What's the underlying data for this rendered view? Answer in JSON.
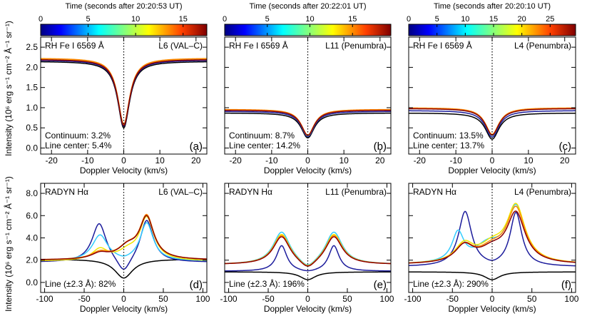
{
  "figure": {
    "y_axis_label": "Intensity (10⁶ erg s⁻¹ cm⁻² Å⁻¹ sr⁻¹)"
  },
  "colorbars": [
    {
      "label": "Time (seconds after 20:20:53 UT)",
      "max": 17.5,
      "ticks": [
        0,
        5,
        10,
        15
      ]
    },
    {
      "label": "Time (seconds after 20:22:01 UT)",
      "max": 19.5,
      "ticks": [
        0,
        5,
        10,
        15
      ]
    },
    {
      "label": "Time (seconds after 20:20:10 UT)",
      "max": 29.5,
      "ticks": [
        0,
        5,
        10,
        15,
        20,
        25
      ]
    }
  ],
  "colors": {
    "black": "#000000",
    "blue": "#1c1c9c",
    "cyan": "#33ccff",
    "yellow": "#f2e600",
    "orange": "#ff8800",
    "darkred": "#8b0000",
    "text_cyan": "#1ab2f2",
    "text_red": "#ee1111"
  },
  "chart_data": [
    {
      "type": "line",
      "panel": "(a)",
      "title_left": "RH Fe I 6569 Å",
      "title_right": "L6 (VAL–C)",
      "xlabel": "Doppler Velocity (km/s)",
      "xlim": [
        -23,
        23
      ],
      "ylim": [
        -0.15,
        2.75
      ],
      "xticks": [
        -20,
        -10,
        0,
        10,
        20
      ],
      "yticks": [
        0.0,
        0.5,
        1.0,
        1.5,
        2.0,
        2.5
      ],
      "ytick_labels": [
        "0.0",
        "0.5",
        "1.0",
        "1.5",
        "2.0",
        "2.5"
      ],
      "series": [
        {
          "color": "black",
          "continuum": 2.15,
          "core": 0.5,
          "width": 2.0
        },
        {
          "color": "blue",
          "continuum": 2.18,
          "core": 0.54,
          "width": 2.0
        },
        {
          "color": "cyan",
          "continuum": 2.21,
          "core": 0.57,
          "width": 2.0
        },
        {
          "color": "yellow",
          "continuum": 2.22,
          "core": 0.58,
          "width": 2.0
        },
        {
          "color": "orange",
          "continuum": 2.23,
          "core": 0.59,
          "width": 2.0
        },
        {
          "color": "darkred",
          "continuum": 2.2,
          "core": 0.56,
          "width": 2.0
        }
      ],
      "notes": [
        {
          "text": "Continuum: 3.2%",
          "color": "cyan"
        },
        {
          "text": "Line center: 5.4%",
          "color": "red"
        }
      ]
    },
    {
      "type": "line",
      "panel": "(b)",
      "title_left": "RH Fe I 6569 Å",
      "title_right": "L11 (Penumbra)",
      "xlabel": "Doppler Velocity (km/s)",
      "xlim": [
        -23,
        23
      ],
      "ylim": [
        -0.15,
        2.75
      ],
      "xticks": [
        -20,
        -10,
        0,
        10,
        20
      ],
      "yticks": [],
      "series": [
        {
          "color": "black",
          "continuum": 0.87,
          "core": 0.25,
          "width": 2.2
        },
        {
          "color": "blue",
          "continuum": 0.91,
          "core": 0.28,
          "width": 2.2
        },
        {
          "color": "cyan",
          "continuum": 0.94,
          "core": 0.3,
          "width": 2.2
        },
        {
          "color": "yellow",
          "continuum": 0.95,
          "core": 0.31,
          "width": 2.2
        },
        {
          "color": "orange",
          "continuum": 0.96,
          "core": 0.32,
          "width": 2.2
        },
        {
          "color": "darkred",
          "continuum": 0.94,
          "core": 0.31,
          "width": 2.2
        }
      ],
      "notes": [
        {
          "text": "Continuum: 8.7%",
          "color": "cyan"
        },
        {
          "text": "Line center: 14.2%",
          "color": "red"
        }
      ]
    },
    {
      "type": "line",
      "panel": "(c)",
      "title_left": "RH Fe I 6569 Å",
      "title_right": "L4 (Penumbra)",
      "xlabel": "Doppler Velocity (km/s)",
      "xlim": [
        -23,
        23
      ],
      "ylim": [
        -0.15,
        2.75
      ],
      "xticks": [
        -20,
        -10,
        0,
        10,
        20
      ],
      "yticks": [],
      "series": [
        {
          "color": "black",
          "continuum": 0.87,
          "core": 0.22,
          "width": 2.3
        },
        {
          "color": "blue",
          "continuum": 0.93,
          "core": 0.27,
          "width": 2.3
        },
        {
          "color": "cyan",
          "continuum": 0.98,
          "core": 0.31,
          "width": 2.3
        },
        {
          "color": "yellow",
          "continuum": 0.99,
          "core": 0.33,
          "width": 2.3
        },
        {
          "color": "orange",
          "continuum": 1.0,
          "core": 0.34,
          "width": 2.3
        },
        {
          "color": "darkred",
          "continuum": 0.98,
          "core": 0.32,
          "width": 2.3
        }
      ],
      "notes": [
        {
          "text": "Continuum: 13.5%",
          "color": "cyan"
        },
        {
          "text": "Line center: 13.7%",
          "color": "red"
        }
      ]
    },
    {
      "type": "line",
      "panel": "(d)",
      "title_left": "RADYN Hα",
      "title_right": "L6 (VAL–C)",
      "xlabel": "Doppler Velocity (km/s)",
      "xlim": [
        -105,
        105
      ],
      "ylim": [
        -0.9,
        8.9
      ],
      "xticks": [
        -100,
        -50,
        0,
        50,
        100
      ],
      "yticks": [
        0.0,
        2.0,
        4.0,
        6.0,
        8.0
      ],
      "ytick_labels": [
        "0.0",
        "2.0",
        "4.0",
        "6.0",
        "8.0"
      ],
      "series": [
        {
          "color": "black",
          "base": 2.1,
          "components": [
            {
              "center": 0,
              "amp": -1.7,
              "width": 14
            }
          ]
        },
        {
          "color": "blue",
          "base": 1.8,
          "components": [
            {
              "center": -31,
              "amp": 3.5,
              "width": 11
            },
            {
              "center": 29,
              "amp": 3.8,
              "width": 10
            },
            {
              "center": 0,
              "amp": -1.4,
              "width": 10
            }
          ]
        },
        {
          "color": "cyan",
          "base": 1.9,
          "components": [
            {
              "center": -30,
              "amp": 2.3,
              "width": 12
            },
            {
              "center": 29,
              "amp": 3.4,
              "width": 10
            },
            {
              "center": 0,
              "amp": -0.2,
              "width": 10
            }
          ]
        },
        {
          "color": "yellow",
          "base": 1.9,
          "components": [
            {
              "center": -30,
              "amp": 1.0,
              "width": 12
            },
            {
              "center": 29,
              "amp": 3.8,
              "width": 11
            },
            {
              "center": 5,
              "amp": 0.7,
              "width": 14
            }
          ]
        },
        {
          "color": "orange",
          "base": 2.0,
          "components": [
            {
              "center": -30,
              "amp": 0.6,
              "width": 13
            },
            {
              "center": 29,
              "amp": 3.8,
              "width": 11
            },
            {
              "center": 5,
              "amp": 1.0,
              "width": 15
            }
          ]
        },
        {
          "color": "darkred",
          "base": 2.0,
          "components": [
            {
              "center": -30,
              "amp": 0.5,
              "width": 13
            },
            {
              "center": 29,
              "amp": 3.7,
              "width": 11
            },
            {
              "center": 5,
              "amp": 1.0,
              "width": 15
            }
          ]
        }
      ],
      "notes": [
        {
          "text": "Line (±2.3 Å): 82%",
          "color": "black"
        }
      ]
    },
    {
      "type": "line",
      "panel": "(e)",
      "title_left": "RADYN Hα",
      "title_right": "L11 (Penumbra)",
      "xlabel": "Doppler Velocity (km/s)",
      "xlim": [
        -105,
        105
      ],
      "ylim": [
        -0.9,
        8.9
      ],
      "xticks": [
        -100,
        -50,
        0,
        50,
        100
      ],
      "yticks": [],
      "series": [
        {
          "color": "black",
          "base": 0.95,
          "components": [
            {
              "center": 0,
              "amp": -0.7,
              "width": 12
            }
          ]
        },
        {
          "color": "blue",
          "base": 1.0,
          "components": [
            {
              "center": -33,
              "amp": 2.3,
              "width": 8
            },
            {
              "center": 33,
              "amp": 2.3,
              "width": 8
            },
            {
              "center": 0,
              "amp": -0.2,
              "width": 14
            }
          ]
        },
        {
          "color": "cyan",
          "base": 1.6,
          "components": [
            {
              "center": -33,
              "amp": 2.9,
              "width": 13
            },
            {
              "center": 33,
              "amp": 2.9,
              "width": 13
            },
            {
              "center": 0,
              "amp": -0.8,
              "width": 12
            }
          ]
        },
        {
          "color": "yellow",
          "base": 1.6,
          "components": [
            {
              "center": -33,
              "amp": 2.7,
              "width": 13
            },
            {
              "center": 33,
              "amp": 2.7,
              "width": 13
            },
            {
              "center": 0,
              "amp": -0.8,
              "width": 12
            }
          ]
        },
        {
          "color": "orange",
          "base": 1.6,
          "components": [
            {
              "center": -33,
              "amp": 2.6,
              "width": 13
            },
            {
              "center": 33,
              "amp": 2.6,
              "width": 13
            },
            {
              "center": 0,
              "amp": -0.8,
              "width": 12
            }
          ]
        },
        {
          "color": "darkred",
          "base": 1.6,
          "components": [
            {
              "center": -33,
              "amp": 2.5,
              "width": 13
            },
            {
              "center": 33,
              "amp": 2.5,
              "width": 13
            },
            {
              "center": 0,
              "amp": -0.8,
              "width": 12
            }
          ]
        }
      ],
      "notes": [
        {
          "text": "Line (±2.3 Å): 196%",
          "color": "black"
        }
      ]
    },
    {
      "type": "line",
      "panel": "(f)",
      "title_left": "RADYN Hα",
      "title_right": "L4 (Penumbra)",
      "xlabel": "Doppler Velocity (km/s)",
      "xlim": [
        -105,
        105
      ],
      "ylim": [
        -0.9,
        8.9
      ],
      "xticks": [
        -100,
        -50,
        0,
        50,
        100
      ],
      "yticks": [],
      "series": [
        {
          "color": "black",
          "base": 0.95,
          "components": [
            {
              "center": 0,
              "amp": -0.7,
              "width": 12
            }
          ]
        },
        {
          "color": "blue",
          "base": 1.4,
          "components": [
            {
              "center": -34,
              "amp": 4.9,
              "width": 10
            },
            {
              "center": 30,
              "amp": 4.8,
              "width": 9
            },
            {
              "center": 0,
              "amp": -0.2,
              "width": 10
            }
          ]
        },
        {
          "color": "cyan",
          "base": 1.6,
          "components": [
            {
              "center": -43,
              "amp": 2.6,
              "width": 9
            },
            {
              "center": 30,
              "amp": 5.0,
              "width": 14
            },
            {
              "center": -5,
              "amp": 1.5,
              "width": 20
            }
          ]
        },
        {
          "color": "yellow",
          "base": 1.6,
          "components": [
            {
              "center": -35,
              "amp": 1.6,
              "width": 14
            },
            {
              "center": 30,
              "amp": 5.0,
              "width": 14
            },
            {
              "center": 0,
              "amp": 1.4,
              "width": 20
            }
          ]
        },
        {
          "color": "orange",
          "base": 1.6,
          "components": [
            {
              "center": -35,
              "amp": 1.5,
              "width": 14
            },
            {
              "center": 30,
              "amp": 4.8,
              "width": 14
            },
            {
              "center": 0,
              "amp": 1.2,
              "width": 20
            }
          ]
        },
        {
          "color": "darkred",
          "base": 1.6,
          "components": [
            {
              "center": -35,
              "amp": 1.5,
              "width": 14
            },
            {
              "center": 30,
              "amp": 4.4,
              "width": 14
            },
            {
              "center": 0,
              "amp": 1.1,
              "width": 20
            }
          ]
        }
      ],
      "notes": [
        {
          "text": "Line (±2.3 Å): 290%",
          "color": "black"
        }
      ]
    }
  ]
}
